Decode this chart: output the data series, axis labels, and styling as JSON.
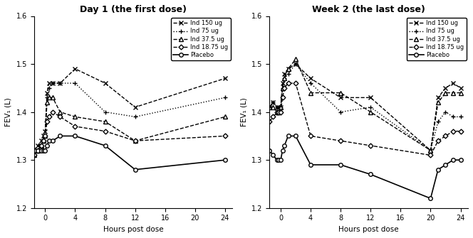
{
  "panel1": {
    "title": "Day 1 (the first dose)",
    "xlabel": "Hours post dose",
    "ylabel": "FEV₁ (L)",
    "ylim": [
      1.2,
      1.6
    ],
    "yticks": [
      1.2,
      1.3,
      1.4,
      1.5,
      1.6
    ],
    "xticks": [
      0,
      4,
      8,
      12,
      16,
      20,
      24
    ],
    "xlim": [
      -1.5,
      25
    ],
    "series": {
      "Ind 150 ug": {
        "x": [
          -1.5,
          -1.0,
          -0.5,
          -0.25,
          0.0,
          0.25,
          0.5,
          1.0,
          2.0,
          4.0,
          8.0,
          12.0,
          24.0
        ],
        "y": [
          1.32,
          1.33,
          1.34,
          1.35,
          1.36,
          1.44,
          1.46,
          1.46,
          1.46,
          1.49,
          1.46,
          1.41,
          1.47
        ],
        "linestyle": "--",
        "marker": "x",
        "markersize": 5,
        "linewidth": 1.0
      },
      "Ind 75 ug": {
        "x": [
          -1.5,
          -1.0,
          -0.5,
          -0.25,
          0.0,
          0.25,
          0.5,
          1.0,
          2.0,
          4.0,
          8.0,
          12.0,
          24.0
        ],
        "y": [
          1.31,
          1.32,
          1.33,
          1.34,
          1.35,
          1.43,
          1.45,
          1.46,
          1.46,
          1.46,
          1.4,
          1.39,
          1.43
        ],
        "linestyle": ":",
        "marker": "+",
        "markersize": 5,
        "linewidth": 1.0
      },
      "Ind 37.5 ug": {
        "x": [
          -1.5,
          -1.0,
          -0.5,
          -0.25,
          0.0,
          0.25,
          0.5,
          1.0,
          2.0,
          4.0,
          8.0,
          12.0,
          24.0
        ],
        "y": [
          1.31,
          1.32,
          1.33,
          1.34,
          1.35,
          1.42,
          1.43,
          1.43,
          1.4,
          1.39,
          1.38,
          1.34,
          1.39
        ],
        "linestyle": "--",
        "marker": "^",
        "markersize": 4,
        "linewidth": 1.0
      },
      "Ind 18.75 ug": {
        "x": [
          -1.5,
          -1.0,
          -0.5,
          -0.25,
          0.0,
          0.25,
          0.5,
          1.0,
          2.0,
          4.0,
          8.0,
          12.0,
          24.0
        ],
        "y": [
          1.31,
          1.32,
          1.33,
          1.34,
          1.35,
          1.38,
          1.39,
          1.4,
          1.39,
          1.37,
          1.36,
          1.34,
          1.35
        ],
        "linestyle": "--",
        "marker": "D",
        "markersize": 3.5,
        "linewidth": 1.0
      },
      "Placebo": {
        "x": [
          -1.5,
          -1.0,
          -0.5,
          -0.25,
          0.0,
          0.25,
          0.5,
          1.0,
          2.0,
          4.0,
          8.0,
          12.0,
          24.0
        ],
        "y": [
          1.32,
          1.32,
          1.32,
          1.32,
          1.32,
          1.33,
          1.34,
          1.34,
          1.35,
          1.35,
          1.33,
          1.28,
          1.3
        ],
        "linestyle": "-",
        "marker": "o",
        "markersize": 4,
        "linewidth": 1.2
      }
    }
  },
  "panel2": {
    "title": "Week 2 (the last dose)",
    "xlabel": "Hours post dose",
    "ylabel": "FEV₁ (L)",
    "ylim": [
      1.2,
      1.6
    ],
    "yticks": [
      1.2,
      1.3,
      1.4,
      1.5,
      1.6
    ],
    "xticks": [
      0,
      4,
      8,
      12,
      16,
      20,
      24
    ],
    "xlim": [
      -1.5,
      25
    ],
    "series": {
      "Ind 150 ug": {
        "x": [
          -1.5,
          -1.0,
          -0.5,
          -0.25,
          0.0,
          0.25,
          0.5,
          1.0,
          2.0,
          4.0,
          8.0,
          12.0,
          20.0,
          21.0,
          22.0,
          23.0,
          24.0
        ],
        "y": [
          1.41,
          1.42,
          1.41,
          1.41,
          1.41,
          1.46,
          1.48,
          1.49,
          1.5,
          1.47,
          1.43,
          1.43,
          1.32,
          1.43,
          1.45,
          1.46,
          1.45
        ],
        "linestyle": "--",
        "marker": "x",
        "markersize": 5,
        "linewidth": 1.0
      },
      "Ind 75 ug": {
        "x": [
          -1.5,
          -1.0,
          -0.5,
          -0.25,
          0.0,
          0.25,
          0.5,
          1.0,
          2.0,
          4.0,
          8.0,
          12.0,
          20.0,
          21.0,
          22.0,
          23.0,
          24.0
        ],
        "y": [
          1.41,
          1.42,
          1.41,
          1.41,
          1.41,
          1.45,
          1.47,
          1.48,
          1.5,
          1.46,
          1.4,
          1.41,
          1.32,
          1.38,
          1.4,
          1.39,
          1.39
        ],
        "linestyle": ":",
        "marker": "+",
        "markersize": 5,
        "linewidth": 1.0
      },
      "Ind 37.5 ug": {
        "x": [
          -1.5,
          -1.0,
          -0.5,
          -0.25,
          0.0,
          0.25,
          0.5,
          1.0,
          2.0,
          4.0,
          8.0,
          12.0,
          20.0,
          21.0,
          22.0,
          23.0,
          24.0
        ],
        "y": [
          1.41,
          1.41,
          1.4,
          1.4,
          1.41,
          1.45,
          1.47,
          1.49,
          1.51,
          1.44,
          1.44,
          1.4,
          1.32,
          1.42,
          1.44,
          1.44,
          1.44
        ],
        "linestyle": "--",
        "marker": "^",
        "markersize": 4,
        "linewidth": 1.0
      },
      "Ind 18.75 ug": {
        "x": [
          -1.5,
          -1.0,
          -0.5,
          -0.25,
          0.0,
          0.25,
          0.5,
          1.0,
          2.0,
          4.0,
          8.0,
          12.0,
          20.0,
          21.0,
          22.0,
          23.0,
          24.0
        ],
        "y": [
          1.38,
          1.39,
          1.4,
          1.4,
          1.4,
          1.43,
          1.45,
          1.46,
          1.46,
          1.35,
          1.34,
          1.33,
          1.31,
          1.34,
          1.35,
          1.36,
          1.36
        ],
        "linestyle": "--",
        "marker": "D",
        "markersize": 3.5,
        "linewidth": 1.0
      },
      "Placebo": {
        "x": [
          -1.5,
          -1.0,
          -0.5,
          -0.25,
          0.0,
          0.25,
          0.5,
          1.0,
          2.0,
          4.0,
          8.0,
          12.0,
          20.0,
          21.0,
          22.0,
          23.0,
          24.0
        ],
        "y": [
          1.32,
          1.31,
          1.3,
          1.3,
          1.3,
          1.32,
          1.33,
          1.35,
          1.35,
          1.29,
          1.29,
          1.27,
          1.22,
          1.28,
          1.29,
          1.3,
          1.3
        ],
        "linestyle": "-",
        "marker": "o",
        "markersize": 4,
        "linewidth": 1.2
      }
    }
  },
  "legend_order": [
    "Ind 150 ug",
    "Ind 75 ug",
    "Ind 37.5 ug",
    "Ind 18.75 ug",
    "Placebo"
  ]
}
